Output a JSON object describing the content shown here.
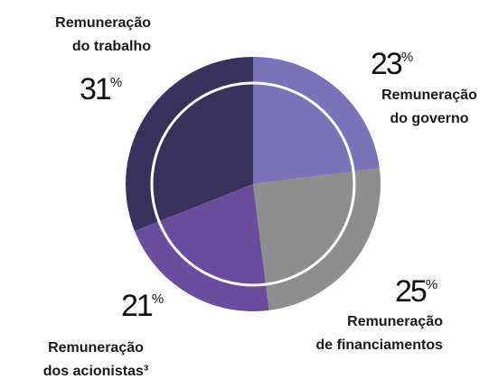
{
  "chart_data": {
    "type": "pie",
    "categories": [
      [
        "Remuneração",
        "do governo"
      ],
      [
        "Remuneração",
        "de financiamentos"
      ],
      [
        "Remuneração",
        "dos acionistas³"
      ],
      [
        "Remuneração",
        "do trabalho"
      ]
    ],
    "values": [
      23,
      25,
      21,
      31
    ],
    "unit": "%",
    "colors": [
      "#7b73b9",
      "#8e8e8e",
      "#6a4d9d",
      "#37315b"
    ]
  }
}
